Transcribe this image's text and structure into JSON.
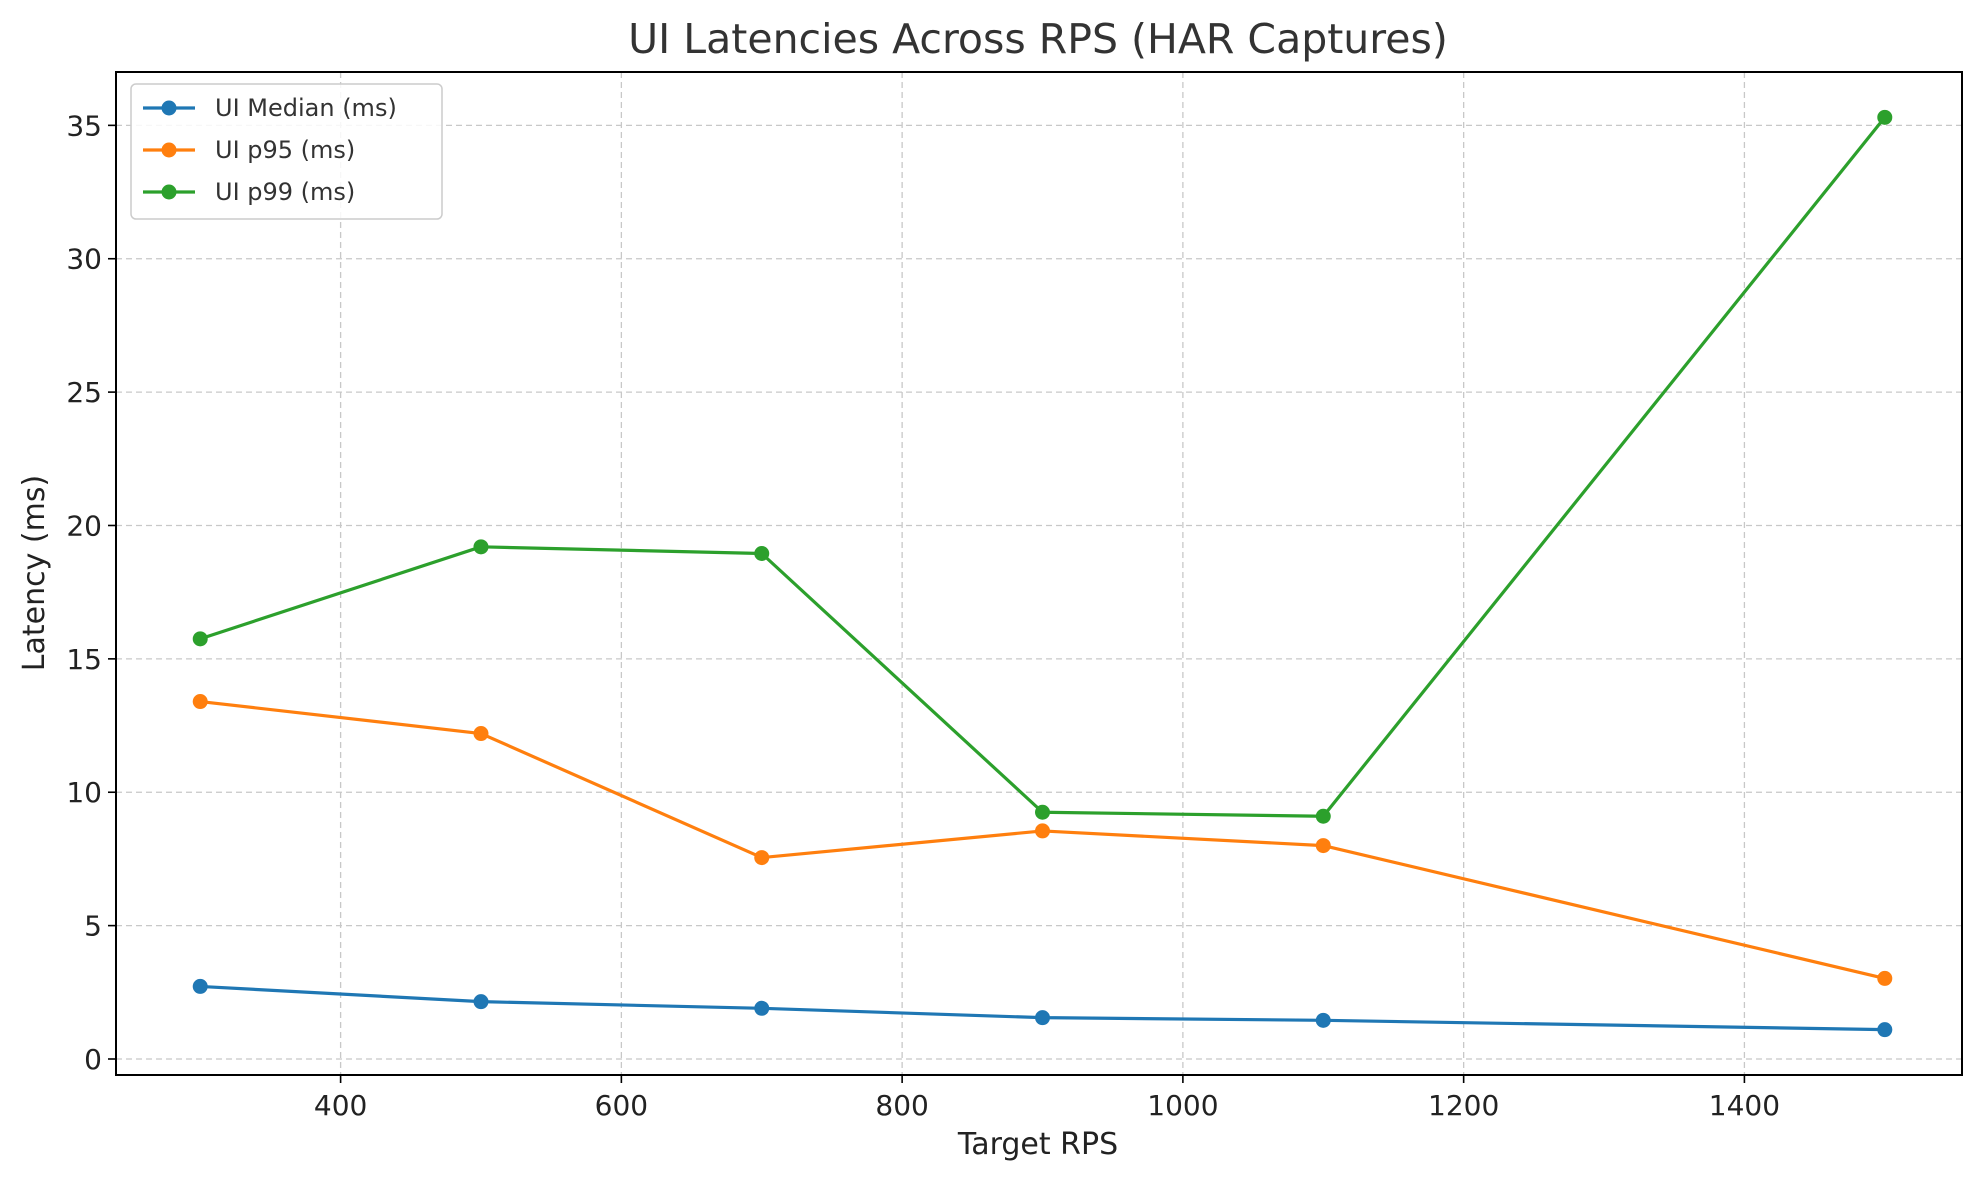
{
  "chart_data": {
    "type": "line",
    "title": "UI Latencies Across RPS (HAR Captures)",
    "xlabel": "Target RPS",
    "ylabel": "Latency (ms)",
    "xlim": [
      240,
      1555
    ],
    "ylim": [
      -0.6,
      37
    ],
    "xticks": [
      400,
      600,
      800,
      1000,
      1200,
      1400
    ],
    "yticks": [
      0,
      5,
      10,
      15,
      20,
      25,
      30,
      35
    ],
    "grid": true,
    "legend_position": "top-left",
    "x": [
      300,
      500,
      700,
      900,
      1100,
      1500
    ],
    "series": [
      {
        "name": "UI Median (ms)",
        "color": "#1f77b4",
        "values": [
          2.72,
          2.15,
          1.9,
          1.55,
          1.45,
          1.1
        ]
      },
      {
        "name": "UI p95 (ms)",
        "color": "#ff7f0e",
        "values": [
          13.4,
          12.2,
          7.55,
          8.55,
          8.0,
          3.02
        ]
      },
      {
        "name": "UI p99 (ms)",
        "color": "#2ca02c",
        "values": [
          15.75,
          19.2,
          18.95,
          9.25,
          9.1,
          35.3
        ]
      }
    ]
  }
}
